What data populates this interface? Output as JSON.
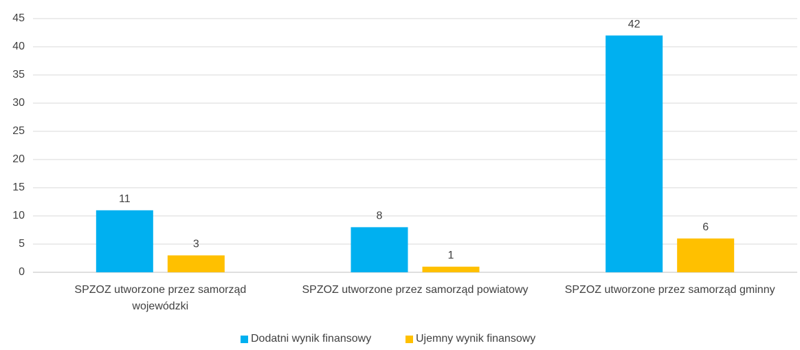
{
  "chart_data": {
    "type": "bar",
    "categories": [
      "SPZOZ utworzone przez samorząd wojewódzki",
      "SPZOZ utworzone przez samorząd powiatowy",
      "SPZOZ utworzone przez samorząd gminny"
    ],
    "series": [
      {
        "name": "Dodatni wynik finansowy",
        "color": "#00b0f0",
        "values": [
          11,
          8,
          42
        ]
      },
      {
        "name": "Ujemny wynik finansowy",
        "color": "#ffc000",
        "values": [
          3,
          1,
          6
        ]
      }
    ],
    "ylim": [
      0,
      45
    ],
    "yticks": [
      0,
      5,
      10,
      15,
      20,
      25,
      30,
      35,
      40,
      45
    ],
    "grid": true,
    "legend": "bottom"
  }
}
